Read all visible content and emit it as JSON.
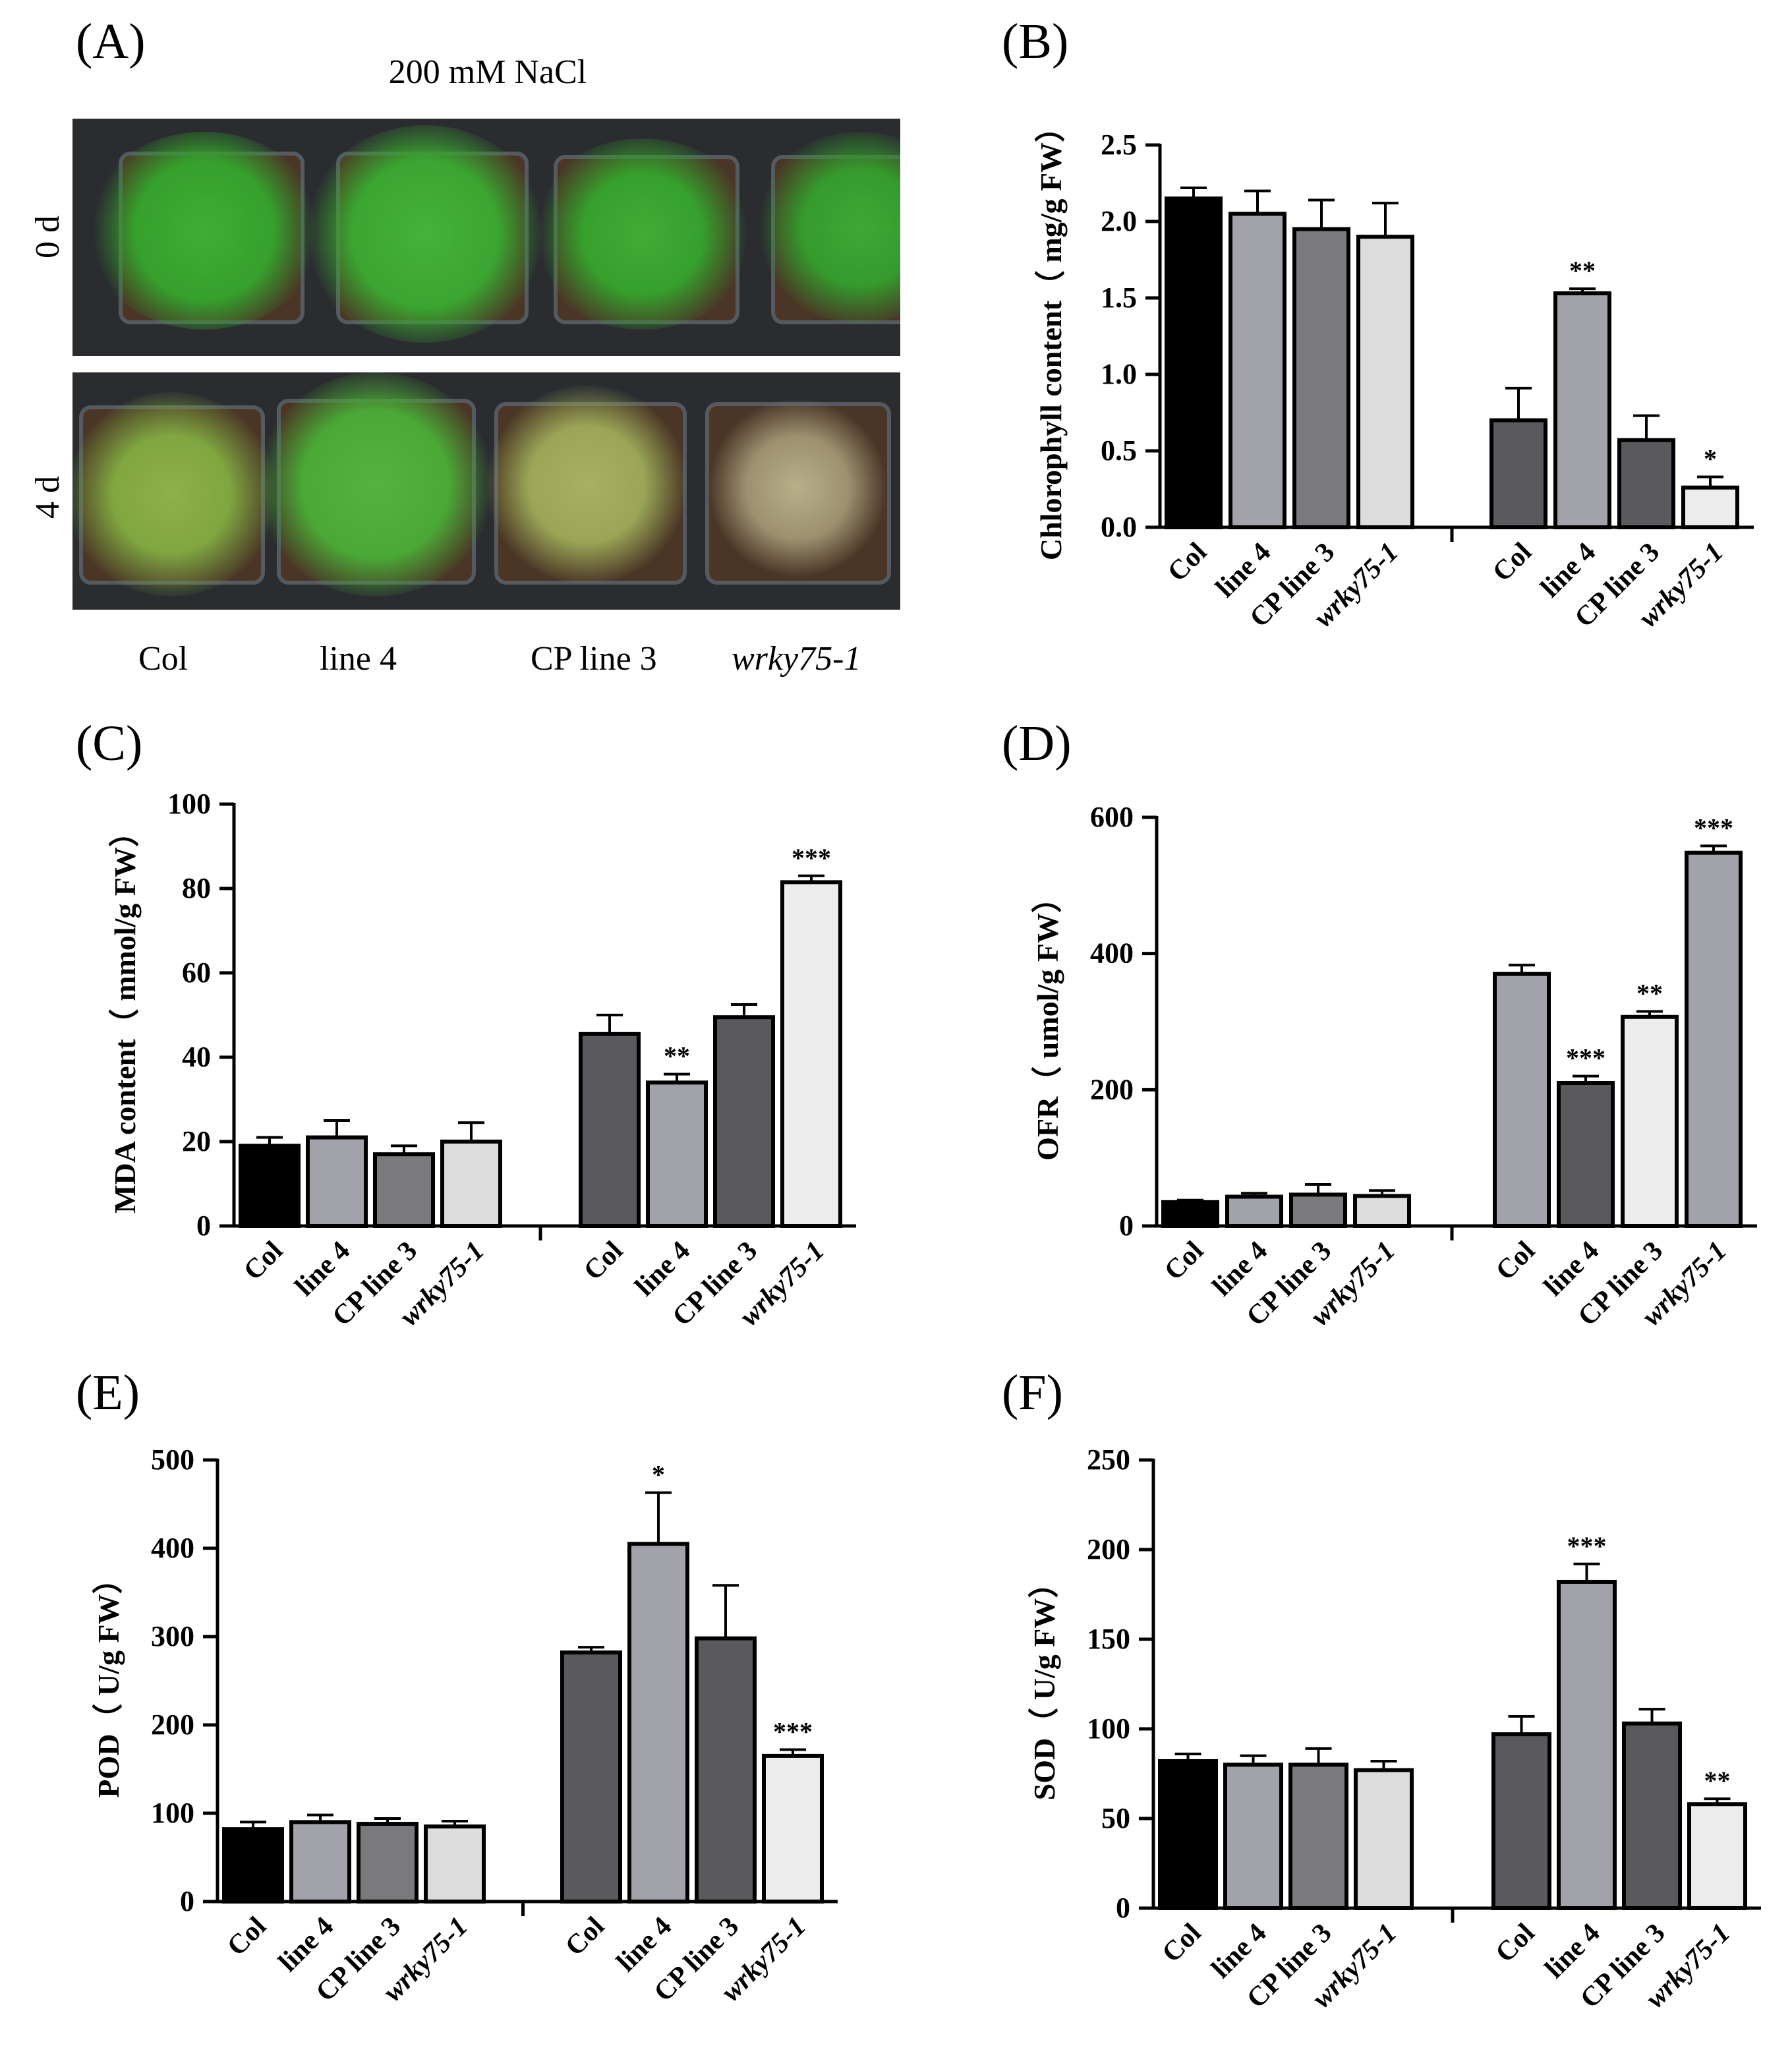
{
  "panel_letters": {
    "a": "(A)",
    "b": "(B)",
    "c": "(C)",
    "d": "(D)",
    "e": "(E)",
    "f": "(F)"
  },
  "photo": {
    "title": "200 mM NaCl",
    "row_labels": [
      "0 d",
      "4 d"
    ],
    "genotypes": [
      "Col",
      "line 4",
      "CP line 3",
      "wrky75-1"
    ]
  },
  "colors": {
    "black": "#000000",
    "light_gray": "#a2a2aa",
    "mid_gray": "#7a7a7e",
    "pale_gray": "#dcdcdc",
    "dark_gray": "#5a5a5e"
  },
  "chart_data": [
    {
      "id": "B",
      "type": "bar",
      "ylabel": "Chlorophyll content（ mg/g FW）",
      "ylim": [
        0,
        2.5
      ],
      "yticks": [
        "0.0",
        "0.5",
        "1.0",
        "1.5",
        "2.0",
        "2.5"
      ],
      "ytick_values": [
        0,
        0.5,
        1.0,
        1.5,
        2.0,
        2.5
      ],
      "categories": [
        "Col",
        "line 4",
        "CP line 3",
        "wrky75-1",
        "Col",
        "line 4",
        "CP line 3",
        "wrky75-1"
      ],
      "values": [
        2.15,
        2.05,
        1.95,
        1.9,
        0.7,
        1.53,
        0.57,
        0.26
      ],
      "errors": [
        0.07,
        0.15,
        0.19,
        0.22,
        0.21,
        0.03,
        0.16,
        0.07
      ],
      "colors": [
        "#000000",
        "#a2a2aa",
        "#7a7a7e",
        "#dcdcdc",
        "#5a5a5e",
        "#a2a2aa",
        "#5a5a5e",
        "#ececec"
      ],
      "significance": [
        "",
        "",
        "",
        "",
        "",
        "**",
        "",
        "*"
      ]
    },
    {
      "id": "C",
      "type": "bar",
      "ylabel": "MDA content（ mmol/g FW）",
      "ylim": [
        0,
        100
      ],
      "yticks": [
        "0",
        "20",
        "40",
        "60",
        "80",
        "100"
      ],
      "ytick_values": [
        0,
        20,
        40,
        60,
        80,
        100
      ],
      "categories": [
        "Col",
        "line 4",
        "CP line 3",
        "wrky75-1",
        "Col",
        "line 4",
        "CP line 3",
        "wrky75-1"
      ],
      "values": [
        19,
        21,
        17,
        20,
        45.5,
        34,
        49.5,
        81.5
      ],
      "errors": [
        2,
        4,
        2,
        4.5,
        4.5,
        2,
        3,
        1.5
      ],
      "colors": [
        "#000000",
        "#a2a2aa",
        "#7a7a7e",
        "#dcdcdc",
        "#5a5a5e",
        "#a2a2aa",
        "#5a5a5e",
        "#ececec"
      ],
      "significance": [
        "",
        "",
        "",
        "",
        "",
        "**",
        "",
        "***"
      ]
    },
    {
      "id": "D",
      "type": "bar",
      "ylabel": "OFR（ umol/g FW）",
      "ylim": [
        0,
        600
      ],
      "yticks": [
        "0",
        "200",
        "400",
        "600"
      ],
      "ytick_values": [
        0,
        200,
        400,
        600
      ],
      "categories": [
        "Col",
        "line 4",
        "CP line 3",
        "wrky75-1",
        "Col",
        "line 4",
        "CP line 3",
        "wrky75-1"
      ],
      "values": [
        35,
        43,
        46,
        44,
        370,
        210,
        307,
        548
      ],
      "errors": [
        3,
        5,
        15,
        8,
        13,
        10,
        8,
        10
      ],
      "colors": [
        "#000000",
        "#a2a2aa",
        "#7a7a7e",
        "#dcdcdc",
        "#a2a2aa",
        "#5a5a5e",
        "#ececec",
        "#a2a2aa"
      ],
      "significance": [
        "",
        "",
        "",
        "",
        "",
        "***",
        "**",
        "***"
      ]
    },
    {
      "id": "E",
      "type": "bar",
      "ylabel": "POD（ U/g FW）",
      "ylim": [
        0,
        500
      ],
      "yticks": [
        "0",
        "100",
        "200",
        "300",
        "400",
        "500"
      ],
      "ytick_values": [
        0,
        100,
        200,
        300,
        400,
        500
      ],
      "categories": [
        "Col",
        "line 4",
        "CP line 3",
        "wrky75-1",
        "Col",
        "line 4",
        "CP line 3",
        "wrky75-1"
      ],
      "values": [
        82,
        90,
        88,
        85,
        282,
        405,
        298,
        165
      ],
      "errors": [
        8,
        8,
        6,
        6,
        6,
        58,
        60,
        7
      ],
      "colors": [
        "#000000",
        "#a2a2aa",
        "#7a7a7e",
        "#dcdcdc",
        "#5a5a5e",
        "#a2a2aa",
        "#5a5a5e",
        "#ececec"
      ],
      "significance": [
        "",
        "",
        "",
        "",
        "",
        "*",
        "",
        "***"
      ]
    },
    {
      "id": "F",
      "type": "bar",
      "ylabel": "SOD（ U/g FW）",
      "ylim": [
        0,
        250
      ],
      "yticks": [
        "0",
        "50",
        "100",
        "150",
        "200",
        "250"
      ],
      "ytick_values": [
        0,
        50,
        100,
        150,
        200,
        250
      ],
      "categories": [
        "Col",
        "line 4",
        "CP line 3",
        "wrky75-1",
        "Col",
        "line 4",
        "CP line 3",
        "wrky75-1"
      ],
      "values": [
        82,
        80,
        80,
        77,
        97,
        182,
        103,
        58
      ],
      "errors": [
        4,
        5,
        9,
        5,
        10,
        10,
        8,
        3
      ],
      "colors": [
        "#000000",
        "#a2a2aa",
        "#7a7a7e",
        "#dcdcdc",
        "#5a5a5e",
        "#a2a2aa",
        "#5a5a5e",
        "#ececec"
      ],
      "significance": [
        "",
        "",
        "",
        "",
        "",
        "***",
        "",
        "**"
      ]
    }
  ]
}
